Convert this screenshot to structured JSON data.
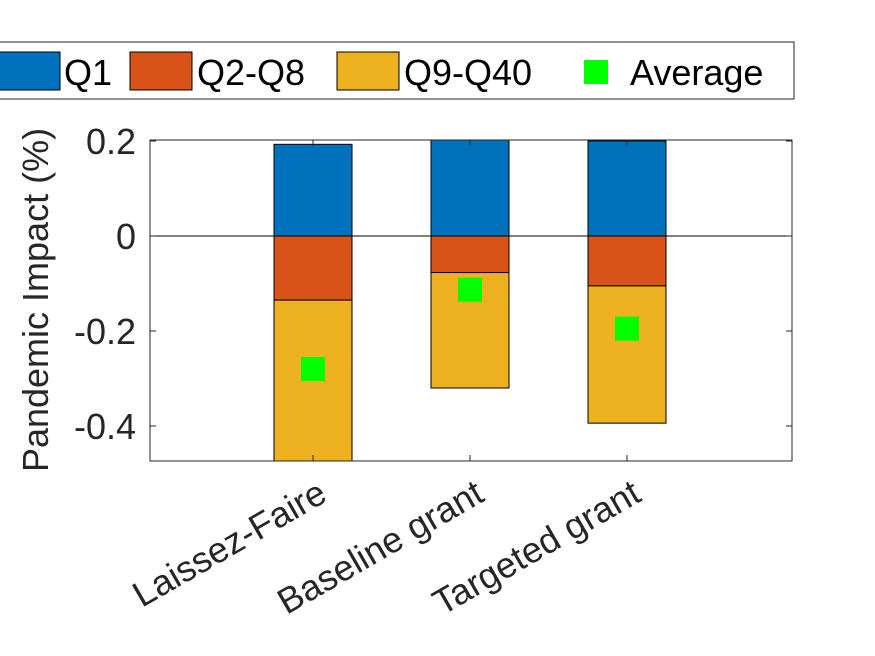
{
  "chart_data": {
    "type": "bar",
    "stacked": true,
    "categories": [
      "Laissez-Faire",
      "Baseline grant",
      "Targeted grant"
    ],
    "series": [
      {
        "name": "Q1",
        "color": "#0072BD",
        "values": [
          0.193,
          0.204,
          0.2
        ]
      },
      {
        "name": "Q2-Q8",
        "color": "#D95319",
        "values": [
          -0.135,
          -0.077,
          -0.105
        ]
      },
      {
        "name": "Q9-Q40",
        "color": "#EDB120",
        "values": [
          -0.345,
          -0.243,
          -0.289
        ]
      }
    ],
    "average": {
      "name": "Average",
      "color": "#00FF00",
      "values": [
        -0.28,
        -0.113,
        -0.195
      ]
    },
    "ylabel": "Pandemic Impact (%)",
    "xlabel": "",
    "ylim": [
      -0.48,
      0.2
    ],
    "yticks": [
      {
        "value": 0.2,
        "label": "0.2"
      },
      {
        "value": 0,
        "label": "0"
      },
      {
        "value": -0.2,
        "label": "-0.2"
      },
      {
        "value": -0.4,
        "label": "-0.4"
      }
    ],
    "legend_position": "top",
    "grid": false
  }
}
